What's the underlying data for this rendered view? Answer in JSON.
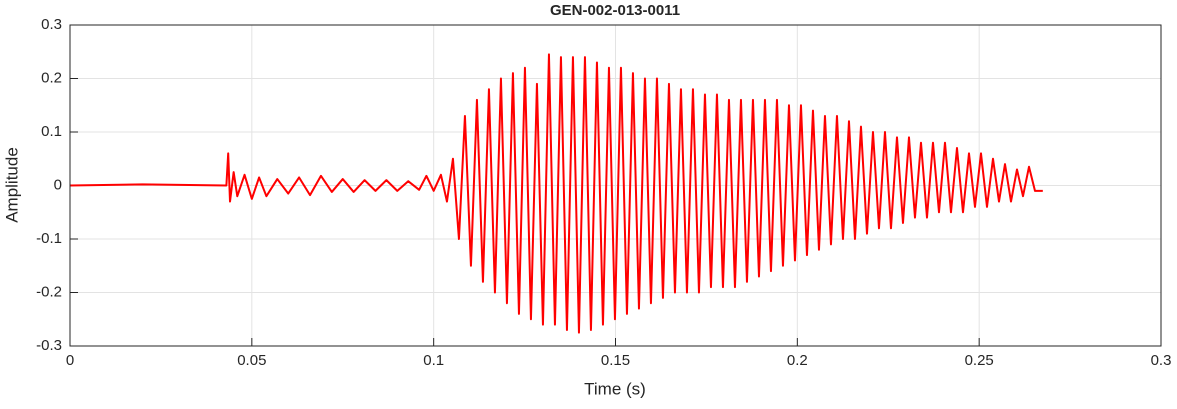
{
  "chart_data": {
    "type": "line",
    "title": "GEN-002-013-0011",
    "xlabel": "Time (s)",
    "ylabel": "Amplitude",
    "x": [
      0,
      0.02,
      0.043,
      0.0435,
      0.044,
      0.045,
      0.046,
      0.048,
      0.05,
      0.052,
      0.054,
      0.057,
      0.06,
      0.063,
      0.066,
      0.069,
      0.072,
      0.075,
      0.078,
      0.081,
      0.084,
      0.087,
      0.09,
      0.093,
      0.096,
      0.098,
      0.1,
      0.102,
      0.10365,
      0.1053,
      0.10695,
      0.1086,
      0.11025,
      0.1119,
      0.11355,
      0.1152,
      0.11685,
      0.1185,
      0.12015,
      0.1218,
      0.12345,
      0.1251,
      0.12675,
      0.1284,
      0.13005,
      0.1317,
      0.13335,
      0.135,
      0.13665,
      0.1383,
      0.13995,
      0.1416,
      0.14325,
      0.1449,
      0.14655,
      0.1482,
      0.14985,
      0.1515,
      0.15315,
      0.1548,
      0.15645,
      0.1581,
      0.15975,
      0.1614,
      0.16305,
      0.1647,
      0.16635,
      0.168,
      0.16965,
      0.1713,
      0.17295,
      0.1746,
      0.17625,
      0.1779,
      0.17955,
      0.1812,
      0.18285,
      0.1845,
      0.18615,
      0.1878,
      0.18945,
      0.1911,
      0.19275,
      0.1944,
      0.19605,
      0.1977,
      0.19935,
      0.201,
      0.20265,
      0.2043,
      0.20595,
      0.2076,
      0.20925,
      0.2109,
      0.21255,
      0.2142,
      0.21585,
      0.2175,
      0.21915,
      0.2208,
      0.22245,
      0.2241,
      0.22575,
      0.2274,
      0.22905,
      0.2307,
      0.23235,
      0.234,
      0.23565,
      0.2373,
      0.23895,
      0.2406,
      0.24225,
      0.2439,
      0.24555,
      0.2472,
      0.24885,
      0.2505,
      0.25215,
      0.2538,
      0.25545,
      0.2571,
      0.25875,
      0.2604,
      0.26205,
      0.2637,
      0.26535,
      0.2675
    ],
    "series": [
      {
        "color": "#ff0000",
        "values": [
          0,
          0.002,
          0,
          0.06,
          -0.03,
          0.025,
          -0.02,
          0.02,
          -0.025,
          0.015,
          -0.02,
          0.012,
          -0.015,
          0.015,
          -0.018,
          0.018,
          -0.012,
          0.012,
          -0.012,
          0.01,
          -0.01,
          0.01,
          -0.01,
          0.008,
          -0.008,
          0.018,
          -0.01,
          0.02,
          -0.03,
          0.05,
          -0.1,
          0.13,
          -0.15,
          0.16,
          -0.18,
          0.18,
          -0.2,
          0.2,
          -0.22,
          0.21,
          -0.24,
          0.22,
          -0.25,
          0.19,
          -0.26,
          0.245,
          -0.26,
          0.24,
          -0.27,
          0.24,
          -0.275,
          0.24,
          -0.27,
          0.23,
          -0.26,
          0.22,
          -0.25,
          0.22,
          -0.24,
          0.21,
          -0.23,
          0.2,
          -0.22,
          0.2,
          -0.21,
          0.19,
          -0.2,
          0.18,
          -0.2,
          0.18,
          -0.2,
          0.17,
          -0.19,
          0.17,
          -0.19,
          0.16,
          -0.19,
          0.16,
          -0.18,
          0.16,
          -0.17,
          0.16,
          -0.16,
          0.16,
          -0.15,
          0.15,
          -0.14,
          0.15,
          -0.13,
          0.14,
          -0.12,
          0.13,
          -0.11,
          0.13,
          -0.1,
          0.12,
          -0.1,
          0.11,
          -0.09,
          0.1,
          -0.08,
          0.1,
          -0.08,
          0.09,
          -0.07,
          0.09,
          -0.06,
          0.08,
          -0.06,
          0.08,
          -0.05,
          0.08,
          -0.05,
          0.07,
          -0.05,
          0.06,
          -0.04,
          0.06,
          -0.04,
          0.05,
          -0.03,
          0.04,
          -0.03,
          0.03,
          -0.02,
          0.035,
          -0.01,
          -0.01
        ]
      }
    ],
    "xlim": [
      0,
      0.3
    ],
    "xticks": [
      0,
      0.05,
      0.1,
      0.15,
      0.2,
      0.25,
      0.3
    ],
    "ylim": [
      -0.3,
      0.3
    ],
    "yticks": [
      -0.3,
      -0.2,
      -0.1,
      0,
      0.1,
      0.2,
      0.3
    ],
    "grid": true
  }
}
